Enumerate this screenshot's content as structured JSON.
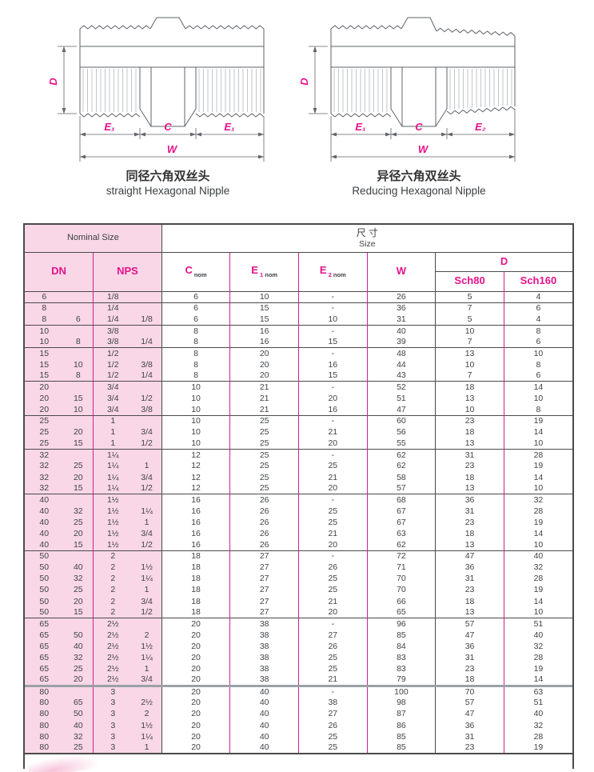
{
  "colors": {
    "accent": "#e6128a",
    "line_magenta": "#cf2190",
    "pink_bg": "#f9d7e7",
    "dark_line": "#4a4a4a",
    "drawing_stroke": "#5f6368"
  },
  "diagrams": {
    "left": {
      "caption_zh": "同径六角双丝头",
      "caption_en": "straight Hexagonal Nipple",
      "dims": {
        "d": "D",
        "e_left": "E₁",
        "c": "C",
        "e_right": "E₁",
        "w": "W"
      }
    },
    "right": {
      "caption_zh": "异径六角双丝头",
      "caption_en": "Reducing Hexagonal Nipple",
      "dims": {
        "d": "D",
        "e_left": "E₁",
        "c": "C",
        "e_right": "E₂",
        "w": "W"
      }
    }
  },
  "table": {
    "nominal_size": "Nominal Size",
    "size_zh": "尺 寸",
    "size_en": "Size",
    "col_dn": "DN",
    "col_nps": "NPS",
    "col_c": "C",
    "sub_nom": "nom",
    "col_e": "E",
    "sub_e1": "1",
    "sub_e2": "2",
    "col_w": "W",
    "col_d": "D",
    "col_sch80": "Sch80",
    "col_sch160": "Sch160",
    "row_fields": [
      "dn1",
      "dn2",
      "nps1",
      "nps2",
      "c_nom",
      "e1_nom",
      "e2_nom",
      "w",
      "d_sch80",
      "d_sch160",
      "group_start"
    ],
    "rows": [
      [
        "6",
        "",
        "1/8",
        "",
        "6",
        "10",
        "-",
        "26",
        "5",
        "4",
        1
      ],
      [
        "8",
        "",
        "1/4",
        "",
        "6",
        "15",
        "-",
        "36",
        "7",
        "6",
        1
      ],
      [
        "8",
        "6",
        "1/4",
        "1/8",
        "6",
        "15",
        "10",
        "31",
        "5",
        "4",
        0
      ],
      [
        "10",
        "",
        "3/8",
        "",
        "8",
        "16",
        "-",
        "40",
        "10",
        "8",
        1
      ],
      [
        "10",
        "8",
        "3/8",
        "1/4",
        "8",
        "16",
        "15",
        "39",
        "7",
        "6",
        0
      ],
      [
        "15",
        "",
        "1/2",
        "",
        "8",
        "20",
        "-",
        "48",
        "13",
        "10",
        1
      ],
      [
        "15",
        "10",
        "1/2",
        "3/8",
        "8",
        "20",
        "16",
        "44",
        "10",
        "8",
        0
      ],
      [
        "15",
        "8",
        "1/2",
        "1/4",
        "8",
        "20",
        "15",
        "43",
        "7",
        "6",
        0
      ],
      [
        "20",
        "",
        "3/4",
        "",
        "10",
        "21",
        "-",
        "52",
        "18",
        "14",
        1
      ],
      [
        "20",
        "15",
        "3/4",
        "1/2",
        "10",
        "21",
        "20",
        "51",
        "13",
        "10",
        0
      ],
      [
        "20",
        "10",
        "3/4",
        "3/8",
        "10",
        "21",
        "16",
        "47",
        "10",
        "8",
        0
      ],
      [
        "25",
        "",
        "1",
        "",
        "10",
        "25",
        "-",
        "60",
        "23",
        "19",
        1
      ],
      [
        "25",
        "20",
        "1",
        "3/4",
        "10",
        "25",
        "21",
        "56",
        "18",
        "14",
        0
      ],
      [
        "25",
        "15",
        "1",
        "1/2",
        "10",
        "25",
        "20",
        "55",
        "13",
        "10",
        0
      ],
      [
        "32",
        "",
        "1¼",
        "",
        "12",
        "25",
        "-",
        "62",
        "31",
        "28",
        1
      ],
      [
        "32",
        "25",
        "1¼",
        "1",
        "12",
        "25",
        "25",
        "62",
        "23",
        "19",
        0
      ],
      [
        "32",
        "20",
        "1¼",
        "3/4",
        "12",
        "25",
        "21",
        "58",
        "18",
        "14",
        0
      ],
      [
        "32",
        "15",
        "1¼",
        "1/2",
        "12",
        "25",
        "20",
        "57",
        "13",
        "10",
        0
      ],
      [
        "40",
        "",
        "1½",
        "",
        "16",
        "26",
        "-",
        "68",
        "36",
        "32",
        1
      ],
      [
        "40",
        "32",
        "1½",
        "1¼",
        "16",
        "26",
        "25",
        "67",
        "31",
        "28",
        0
      ],
      [
        "40",
        "25",
        "1½",
        "1",
        "16",
        "26",
        "25",
        "67",
        "23",
        "19",
        0
      ],
      [
        "40",
        "20",
        "1½",
        "3/4",
        "16",
        "26",
        "21",
        "63",
        "18",
        "14",
        0
      ],
      [
        "40",
        "15",
        "1½",
        "1/2",
        "16",
        "26",
        "20",
        "62",
        "13",
        "10",
        0
      ],
      [
        "50",
        "",
        "2",
        "",
        "18",
        "27",
        "-",
        "72",
        "47",
        "40",
        1
      ],
      [
        "50",
        "40",
        "2",
        "1½",
        "18",
        "27",
        "26",
        "71",
        "36",
        "32",
        0
      ],
      [
        "50",
        "32",
        "2",
        "1¼",
        "18",
        "27",
        "25",
        "70",
        "31",
        "28",
        0
      ],
      [
        "50",
        "25",
        "2",
        "1",
        "18",
        "27",
        "25",
        "70",
        "23",
        "19",
        0
      ],
      [
        "50",
        "20",
        "2",
        "3/4",
        "18",
        "27",
        "21",
        "66",
        "18",
        "14",
        0
      ],
      [
        "50",
        "15",
        "2",
        "1/2",
        "18",
        "27",
        "20",
        "65",
        "13",
        "10",
        0
      ],
      [
        "65",
        "",
        "2½",
        "",
        "20",
        "38",
        "-",
        "96",
        "57",
        "51",
        1
      ],
      [
        "65",
        "50",
        "2½",
        "2",
        "20",
        "38",
        "27",
        "85",
        "47",
        "40",
        0
      ],
      [
        "65",
        "40",
        "2½",
        "1½",
        "20",
        "38",
        "26",
        "84",
        "36",
        "32",
        0
      ],
      [
        "65",
        "32",
        "2½",
        "1¼",
        "20",
        "38",
        "25",
        "83",
        "31",
        "28",
        0
      ],
      [
        "65",
        "25",
        "2½",
        "1",
        "20",
        "38",
        "25",
        "83",
        "23",
        "19",
        0
      ],
      [
        "65",
        "20",
        "2½",
        "3/4",
        "20",
        "38",
        "21",
        "79",
        "18",
        "14",
        0
      ],
      [
        "80",
        "",
        "3",
        "",
        "20",
        "40",
        "-",
        "100",
        "70",
        "63",
        2
      ],
      [
        "80",
        "65",
        "3",
        "2½",
        "20",
        "40",
        "38",
        "98",
        "57",
        "51",
        0
      ],
      [
        "80",
        "50",
        "3",
        "2",
        "20",
        "40",
        "27",
        "87",
        "47",
        "40",
        0
      ],
      [
        "80",
        "40",
        "3",
        "1½",
        "20",
        "40",
        "26",
        "86",
        "36",
        "32",
        0
      ],
      [
        "80",
        "32",
        "3",
        "1¼",
        "20",
        "40",
        "25",
        "85",
        "31",
        "28",
        0
      ],
      [
        "80",
        "25",
        "3",
        "1",
        "20",
        "40",
        "25",
        "85",
        "23",
        "19",
        0
      ]
    ]
  }
}
